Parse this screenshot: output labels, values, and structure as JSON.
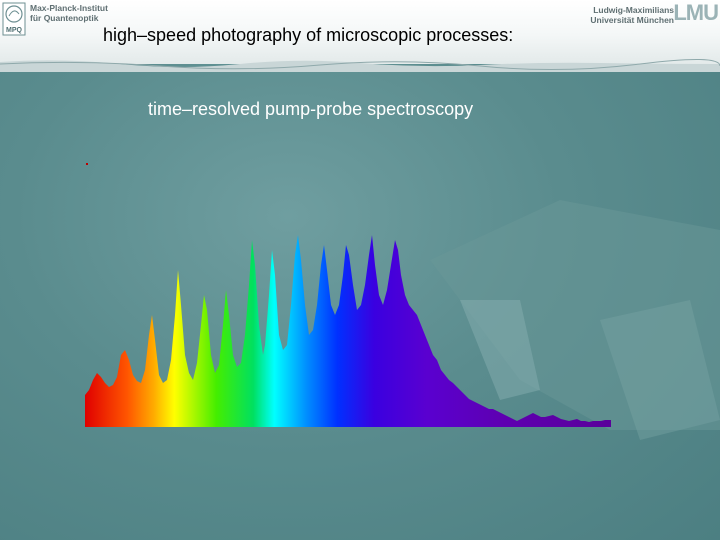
{
  "header": {
    "institute_left": [
      "Max-Planck-Institut",
      "für Quantenoptik"
    ],
    "logo_left_text": "MPQ",
    "institute_right": [
      "Ludwig-Maximilians",
      "Universität München"
    ],
    "logo_right_text": "LMU"
  },
  "slide": {
    "title": "high–speed photography of microscopic processes:",
    "subtitle": "time–resolved pump-probe spectroscopy"
  },
  "figure": {
    "description_icon": "spectrum-image",
    "colors": [
      "#e00000",
      "#ff7f00",
      "#ffff00",
      "#00e000",
      "#00ffff",
      "#0040ff",
      "#5a00d0",
      "#6a00a0"
    ]
  }
}
